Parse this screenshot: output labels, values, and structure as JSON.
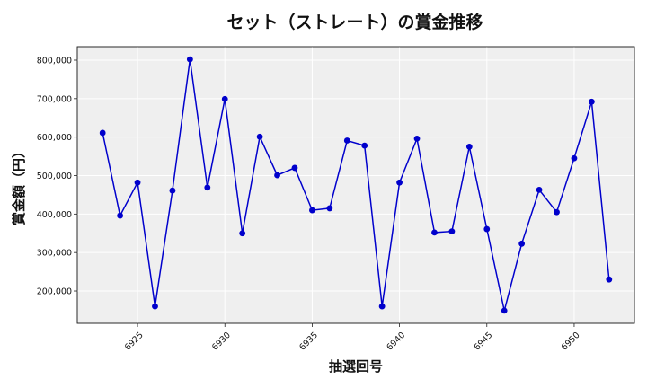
{
  "chart_data": {
    "type": "line",
    "title": "セット（ストレート）の賞金推移",
    "xlabel": "抽選回号",
    "ylabel": "賞金額（円）",
    "x": [
      6923,
      6924,
      6925,
      6926,
      6927,
      6928,
      6929,
      6930,
      6931,
      6932,
      6933,
      6934,
      6935,
      6936,
      6937,
      6938,
      6939,
      6940,
      6941,
      6942,
      6943,
      6944,
      6945,
      6946,
      6947,
      6948,
      6949,
      6950,
      6951,
      6952
    ],
    "series": [
      {
        "values": [
          611000,
          396000,
          482000,
          160000,
          461000,
          802000,
          469000,
          699000,
          350000,
          601000,
          501000,
          520000,
          410000,
          415000,
          591000,
          578000,
          160000,
          482000,
          596000,
          352000,
          355000,
          575000,
          361000,
          149000,
          323000,
          463000,
          405000,
          545000,
          692000,
          230000
        ],
        "color": "#0000cc"
      }
    ],
    "xticks": [
      6925,
      6930,
      6935,
      6940,
      6945,
      6950
    ],
    "yticks": [
      200000,
      300000,
      400000,
      500000,
      600000,
      700000,
      800000
    ],
    "ytick_labels": [
      "200,000",
      "300,000",
      "400,000",
      "500,000",
      "600,000",
      "700,000",
      "800,000"
    ],
    "xlim": [
      6921.55,
      6953.45
    ],
    "ylim": [
      116000,
      835000
    ],
    "grid": true,
    "plot_background": "#efefef",
    "grid_color": "#ffffff"
  }
}
